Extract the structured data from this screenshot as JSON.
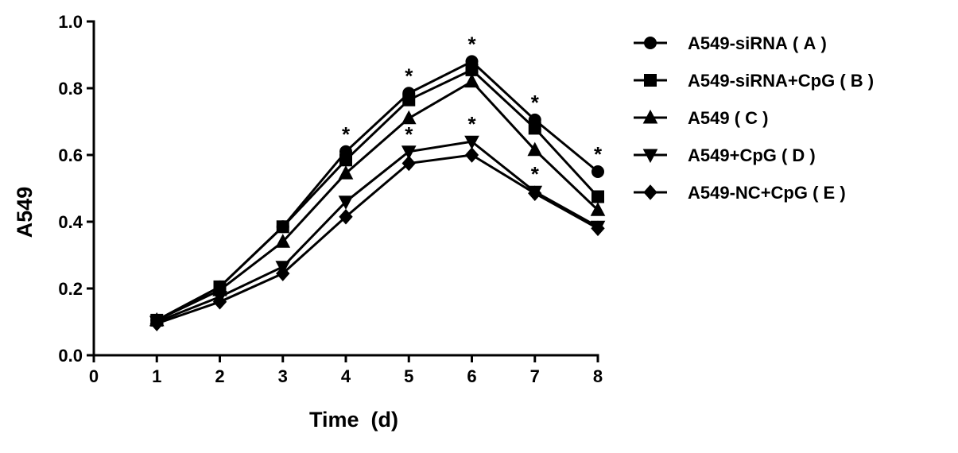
{
  "chart_data": {
    "type": "line",
    "title": "",
    "xlabel": "Time  (d)",
    "ylabel": "A549",
    "xlim": [
      0,
      8
    ],
    "ylim": [
      0.0,
      1.0
    ],
    "xticks": [
      0,
      1,
      2,
      3,
      4,
      5,
      6,
      7,
      8
    ],
    "yticks": [
      0.0,
      0.2,
      0.4,
      0.6,
      0.8,
      1.0
    ],
    "xtick_labels": [
      "0",
      "1",
      "2",
      "3",
      "4",
      "5",
      "6",
      "7",
      "8"
    ],
    "ytick_labels": [
      "0.0",
      "0.2",
      "0.4",
      "0.6",
      "0.8",
      "1.0"
    ],
    "grid": false,
    "legend": "right",
    "x": [
      1,
      2,
      3,
      4,
      5,
      6,
      7,
      8
    ],
    "series": [
      {
        "name": "A549-siRNA ( A )",
        "marker": "circle",
        "values": [
          0.105,
          0.205,
          0.385,
          0.61,
          0.785,
          0.88,
          0.705,
          0.55
        ]
      },
      {
        "name": "A549-siRNA+CpG ( B )",
        "marker": "square",
        "values": [
          0.105,
          0.205,
          0.385,
          0.585,
          0.765,
          0.855,
          0.68,
          0.475
        ]
      },
      {
        "name": "A549 ( C )",
        "marker": "triangle-up",
        "values": [
          0.105,
          0.195,
          0.34,
          0.545,
          0.71,
          0.82,
          0.615,
          0.435
        ]
      },
      {
        "name": "A549+CpG ( D )",
        "marker": "triangle-down",
        "values": [
          0.1,
          0.175,
          0.265,
          0.46,
          0.61,
          0.64,
          0.49,
          0.385
        ]
      },
      {
        "name": "A549-NC+CpG ( E )",
        "marker": "diamond",
        "values": [
          0.095,
          0.16,
          0.245,
          0.415,
          0.575,
          0.6,
          0.485,
          0.38
        ]
      }
    ],
    "annotations": [
      {
        "text": "*",
        "x": 4,
        "y": 0.61
      },
      {
        "text": "*",
        "x": 5,
        "y": 0.785
      },
      {
        "text": "*",
        "x": 6,
        "y": 0.88
      },
      {
        "text": "*",
        "x": 7,
        "y": 0.705
      },
      {
        "text": "*",
        "x": 8,
        "y": 0.55
      },
      {
        "text": "*",
        "x": 5,
        "y": 0.61
      },
      {
        "text": "*",
        "x": 6,
        "y": 0.64
      },
      {
        "text": "*",
        "x": 7,
        "y": 0.49
      }
    ],
    "line_color": "#000000"
  }
}
